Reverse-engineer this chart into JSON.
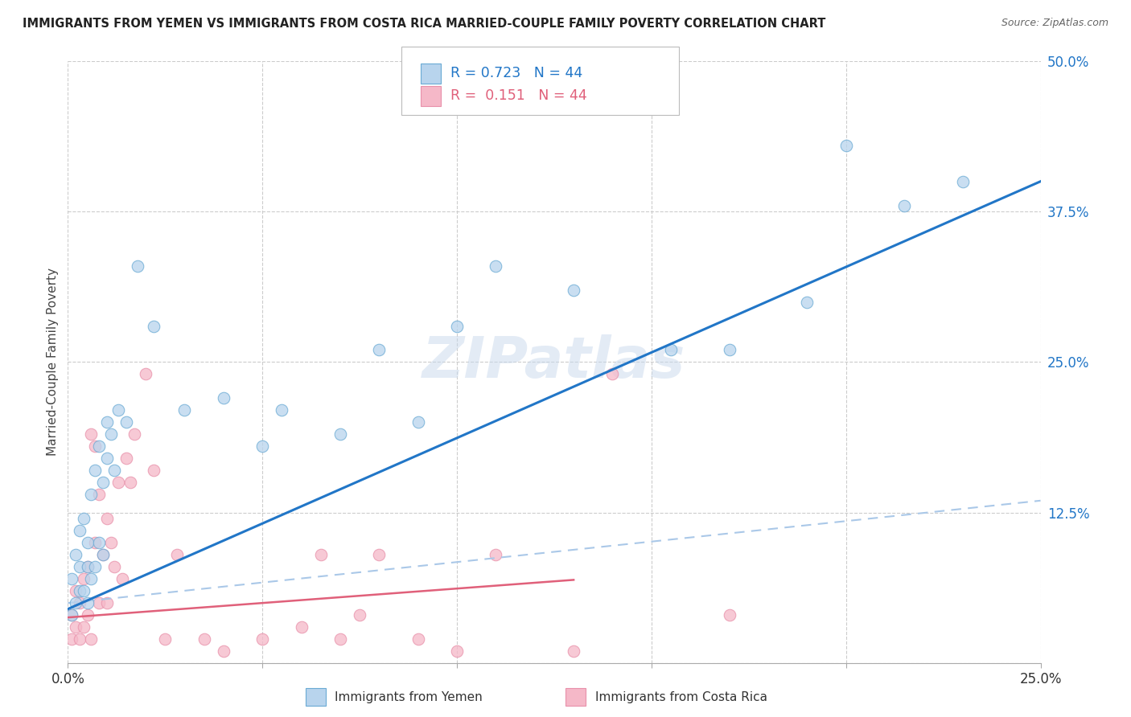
{
  "title": "IMMIGRANTS FROM YEMEN VS IMMIGRANTS FROM COSTA RICA MARRIED-COUPLE FAMILY POVERTY CORRELATION CHART",
  "source": "Source: ZipAtlas.com",
  "ylabel": "Married-Couple Family Poverty",
  "yticks": [
    0.0,
    0.125,
    0.25,
    0.375,
    0.5
  ],
  "ytick_labels": [
    "",
    "12.5%",
    "25.0%",
    "37.5%",
    "50.0%"
  ],
  "xtick_labels": [
    "0.0%",
    "",
    "",
    "",
    "",
    "25.0%"
  ],
  "xticks": [
    0.0,
    0.05,
    0.1,
    0.15,
    0.2,
    0.25
  ],
  "xlim": [
    0.0,
    0.25
  ],
  "ylim": [
    0.0,
    0.5
  ],
  "color_yemen": "#b8d4ed",
  "color_costa": "#f5b8c8",
  "color_yemen_edge": "#6aaad4",
  "color_costa_edge": "#e890aa",
  "color_yemen_line": "#2176c7",
  "color_costa_line": "#e0607a",
  "color_dashed": "#aac8e8",
  "background_color": "#ffffff",
  "grid_color": "#cccccc",
  "watermark": "ZIPatlas",
  "yemen_x": [
    0.001,
    0.001,
    0.002,
    0.002,
    0.003,
    0.003,
    0.003,
    0.004,
    0.004,
    0.005,
    0.005,
    0.005,
    0.006,
    0.006,
    0.007,
    0.007,
    0.008,
    0.008,
    0.009,
    0.009,
    0.01,
    0.01,
    0.011,
    0.012,
    0.013,
    0.015,
    0.018,
    0.022,
    0.03,
    0.04,
    0.05,
    0.055,
    0.07,
    0.08,
    0.09,
    0.1,
    0.11,
    0.13,
    0.155,
    0.17,
    0.19,
    0.2,
    0.215,
    0.23
  ],
  "yemen_y": [
    0.04,
    0.07,
    0.05,
    0.09,
    0.06,
    0.08,
    0.11,
    0.06,
    0.12,
    0.05,
    0.08,
    0.1,
    0.07,
    0.14,
    0.08,
    0.16,
    0.1,
    0.18,
    0.09,
    0.15,
    0.17,
    0.2,
    0.19,
    0.16,
    0.21,
    0.2,
    0.33,
    0.28,
    0.21,
    0.22,
    0.18,
    0.21,
    0.19,
    0.26,
    0.2,
    0.28,
    0.33,
    0.31,
    0.26,
    0.26,
    0.3,
    0.43,
    0.38,
    0.4
  ],
  "costa_x": [
    0.001,
    0.001,
    0.002,
    0.002,
    0.003,
    0.003,
    0.004,
    0.004,
    0.005,
    0.005,
    0.006,
    0.006,
    0.007,
    0.007,
    0.008,
    0.008,
    0.009,
    0.01,
    0.01,
    0.011,
    0.012,
    0.013,
    0.014,
    0.015,
    0.016,
    0.017,
    0.02,
    0.022,
    0.025,
    0.028,
    0.035,
    0.04,
    0.05,
    0.06,
    0.065,
    0.07,
    0.075,
    0.08,
    0.09,
    0.1,
    0.11,
    0.13,
    0.14,
    0.17
  ],
  "costa_y": [
    0.02,
    0.04,
    0.03,
    0.06,
    0.02,
    0.05,
    0.03,
    0.07,
    0.04,
    0.08,
    0.02,
    0.19,
    0.18,
    0.1,
    0.05,
    0.14,
    0.09,
    0.05,
    0.12,
    0.1,
    0.08,
    0.15,
    0.07,
    0.17,
    0.15,
    0.19,
    0.24,
    0.16,
    0.02,
    0.09,
    0.02,
    0.01,
    0.02,
    0.03,
    0.09,
    0.02,
    0.04,
    0.09,
    0.02,
    0.01,
    0.09,
    0.01,
    0.24,
    0.04
  ],
  "yemen_line_x0": 0.0,
  "yemen_line_y0": 0.045,
  "yemen_line_x1": 0.25,
  "yemen_line_y1": 0.4,
  "costa_line_x0": 0.0,
  "costa_line_y0": 0.038,
  "costa_line_x1": 0.25,
  "costa_line_y1": 0.098,
  "dashed_line_x0": 0.0,
  "dashed_line_y0": 0.05,
  "dashed_line_x1": 0.25,
  "dashed_line_y1": 0.135
}
